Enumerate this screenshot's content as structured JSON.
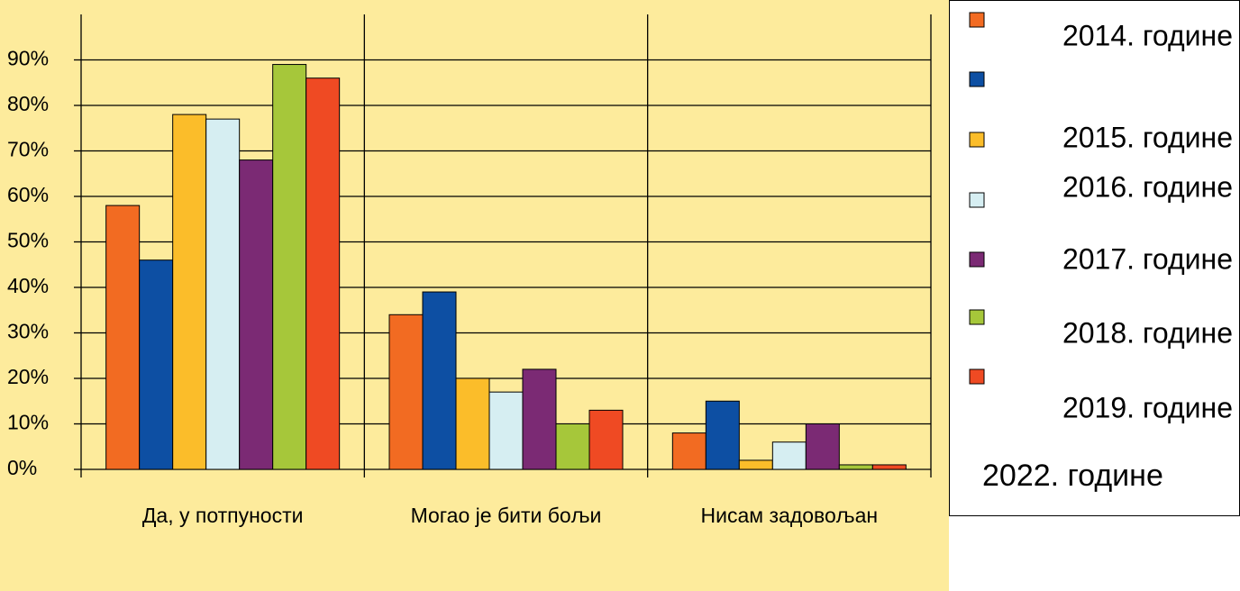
{
  "chart_data": {
    "type": "bar",
    "categories": [
      "Да, у потпуности",
      "Могао је бити бољи",
      "Нисам задовољан"
    ],
    "series": [
      {
        "name": "2014. године",
        "color": "#f26b22",
        "values": [
          58,
          34,
          8
        ]
      },
      {
        "name": "2015. године",
        "color": "#0d4fa3",
        "values": [
          46,
          39,
          15
        ]
      },
      {
        "name": "2016. године",
        "color": "#fbbd2a",
        "values": [
          78,
          20,
          2
        ]
      },
      {
        "name": "2017. године",
        "color": "#d6eef2",
        "values": [
          77,
          17,
          6
        ]
      },
      {
        "name": "2018. године",
        "color": "#7b2a74",
        "values": [
          68,
          22,
          10
        ]
      },
      {
        "name": "2019. године",
        "color": "#a6c73a",
        "values": [
          89,
          10,
          1
        ]
      },
      {
        "name": "2022. године",
        "color": "#ef4a23",
        "values": [
          86,
          13,
          1
        ]
      }
    ],
    "ylim": [
      0,
      100
    ],
    "yticks": [
      {
        "value": 0,
        "label": "0%"
      },
      {
        "value": 10,
        "label": "10%"
      },
      {
        "value": 20,
        "label": "20%"
      },
      {
        "value": 30,
        "label": "30%"
      },
      {
        "value": 40,
        "label": "40%"
      },
      {
        "value": 50,
        "label": "50%"
      },
      {
        "value": 60,
        "label": "60%"
      },
      {
        "value": 70,
        "label": "70%"
      },
      {
        "value": 80,
        "label": "80%"
      },
      {
        "value": 90,
        "label": "90%"
      }
    ],
    "grid": true,
    "legend": "right"
  }
}
